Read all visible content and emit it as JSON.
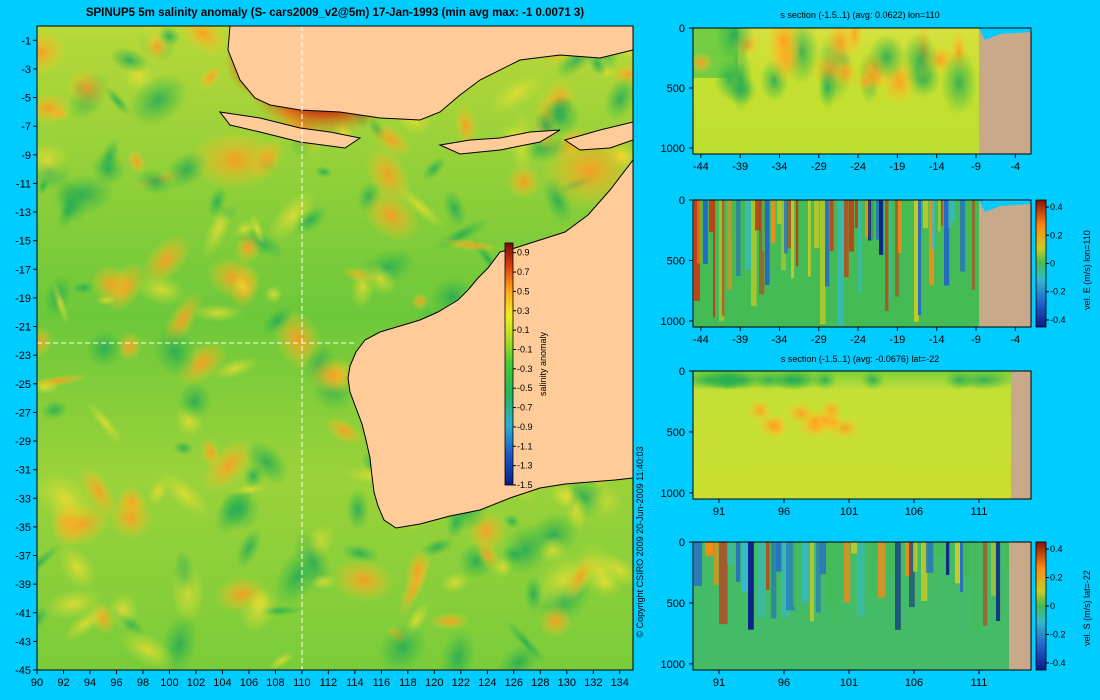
{
  "colors": {
    "background": "#00ccff",
    "land": "#ffcc99",
    "seabed": "#c8a98a"
  },
  "map": {
    "title": "SPINUP5 5m salinity anomaly (S- cars2009_v2@5m) 17-Jan-1993 (min avg max: -1 0.0071 3)",
    "xticks": [
      "90",
      "92",
      "94",
      "96",
      "98",
      "100",
      "102",
      "104",
      "106",
      "108",
      "110",
      "112",
      "114",
      "116",
      "118",
      "120",
      "122",
      "124",
      "126",
      "128",
      "130",
      "132",
      "134"
    ],
    "yticks": [
      "-1",
      "-3",
      "-5",
      "-7",
      "-9",
      "-11",
      "-13",
      "-15",
      "-17",
      "-19",
      "-21",
      "-23",
      "-25",
      "-27",
      "-29",
      "-31",
      "-33",
      "-35",
      "-37",
      "-39",
      "-41",
      "-43",
      "-45"
    ],
    "colorbar": {
      "label": "salinity anomaly",
      "ticks": [
        "0.9",
        "0.7",
        "0.5",
        "0.3",
        "0.1",
        "-0.1",
        "-0.3",
        "-0.5",
        "-0.7",
        "-0.9",
        "-1.1",
        "-1.3",
        "-1.5"
      ]
    },
    "copyright": "© Copyright CSIRO 2009  20-Jun-2009 11:40:03"
  },
  "panels": {
    "p1": {
      "title": "s section (-1.5..1) (avg: 0.0622) lon=110",
      "xticks": [
        "-44",
        "-39",
        "-34",
        "-29",
        "-24",
        "-19",
        "-14",
        "-9",
        "-4"
      ],
      "yticks": [
        "0",
        "500",
        "1000"
      ]
    },
    "p2": {
      "xticks": [
        "-44",
        "-39",
        "-34",
        "-29",
        "-24",
        "-19",
        "-14",
        "-9",
        "-4"
      ],
      "yticks": [
        "0",
        "500",
        "1000"
      ],
      "cb_label": "vel. E (m/s) lon=110",
      "cb_ticks": [
        "0.4",
        "0.2",
        "0",
        "-0.2",
        "-0.4"
      ]
    },
    "p3": {
      "title": "s section (-1.5..1) (avg: -0.0676) lat=-22",
      "xticks": [
        "91",
        "96",
        "101",
        "106",
        "111"
      ],
      "yticks": [
        "0",
        "500",
        "1000"
      ]
    },
    "p4": {
      "xticks": [
        "91",
        "96",
        "101",
        "106",
        "111"
      ],
      "yticks": [
        "0",
        "500",
        "1000"
      ],
      "cb_label": "vel. S (m/s) lat=-22",
      "cb_ticks": [
        "0.4",
        "0.2",
        "0",
        "-0.2",
        "-0.4"
      ]
    }
  },
  "chart_data": [
    {
      "type": "heatmap",
      "title": "SPINUP5 5m salinity anomaly (S- cars2009_v2@5m) 17-Jan-1993 (min avg max: -1 0.0071 3)",
      "xlabel": "",
      "ylabel": "",
      "xlim": [
        90,
        135
      ],
      "ylim": [
        -45,
        0
      ],
      "colorbar_range": [
        -1.5,
        1
      ],
      "colorbar_label": "salinity anomaly",
      "section_lines": {
        "lon": 110,
        "lat": -22
      }
    },
    {
      "type": "heatmap",
      "title": "s section (-1.5..1) (avg: 0.0622) lon=110",
      "xlim": [
        -45,
        -2
      ],
      "ylim": [
        1050,
        0
      ]
    },
    {
      "type": "heatmap",
      "title": "",
      "xlim": [
        -45,
        -2
      ],
      "ylim": [
        1050,
        0
      ],
      "colorbar_range": [
        -0.45,
        0.45
      ],
      "colorbar_label": "vel. E (m/s) lon=110"
    },
    {
      "type": "heatmap",
      "title": "s section (-1.5..1) (avg: -0.0676) lat=-22",
      "xlim": [
        89,
        115
      ],
      "ylim": [
        1050,
        0
      ]
    },
    {
      "type": "heatmap",
      "title": "",
      "xlim": [
        89,
        115
      ],
      "ylim": [
        1050,
        0
      ],
      "colorbar_range": [
        -0.45,
        0.45
      ],
      "colorbar_label": "vel. S (m/s) lat=-22"
    }
  ]
}
